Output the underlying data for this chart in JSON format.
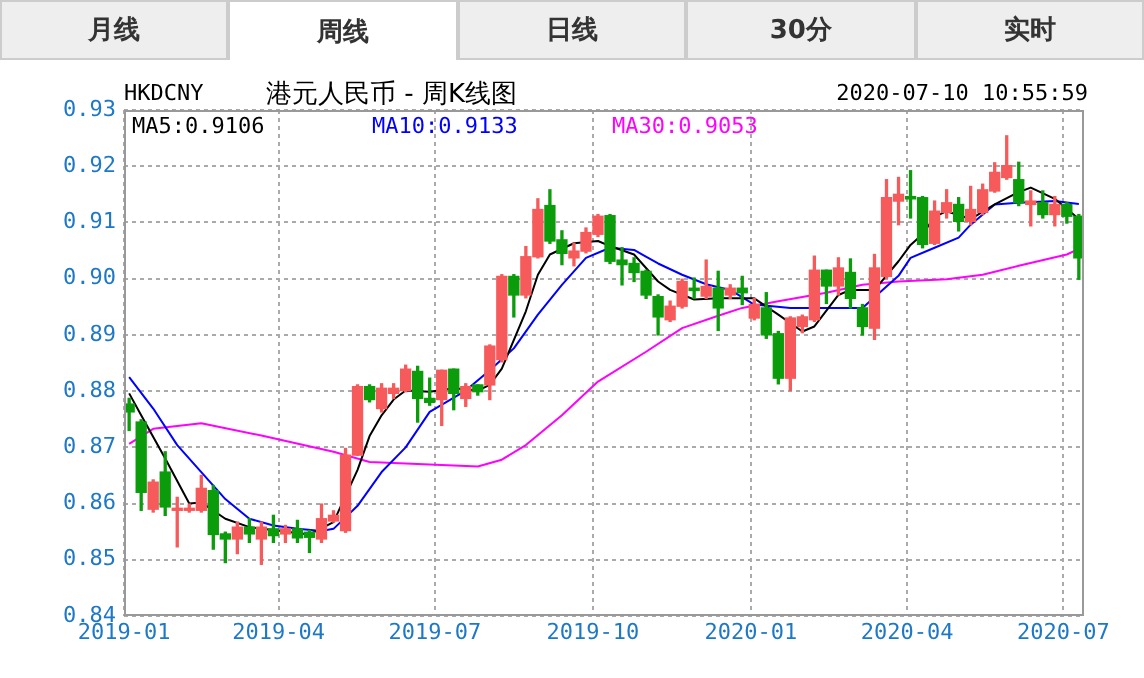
{
  "chart_data": {
    "type": "candlestick",
    "title": "港元人民币 - 周K线图",
    "subtitle": "HKDCNY",
    "annotations": [
      "月线",
      "周线",
      "日线",
      "30分",
      "实时",
      "2020-07-10 10:55:59"
    ],
    "x": [
      "2019-01-04",
      "2019-01-11",
      "2019-01-18",
      "2019-01-25",
      "2019-02-01",
      "2019-02-08",
      "2019-02-15",
      "2019-02-22",
      "2019-03-01",
      "2019-03-08",
      "2019-03-15",
      "2019-03-22",
      "2019-03-29",
      "2019-04-05",
      "2019-04-12",
      "2019-04-19",
      "2019-04-26",
      "2019-05-03",
      "2019-05-10",
      "2019-05-17",
      "2019-05-24",
      "2019-05-31",
      "2019-06-07",
      "2019-06-14",
      "2019-06-21",
      "2019-06-28",
      "2019-07-05",
      "2019-07-12",
      "2019-07-19",
      "2019-07-26",
      "2019-08-02",
      "2019-08-09",
      "2019-08-16",
      "2019-08-23",
      "2019-08-30",
      "2019-09-06",
      "2019-09-13",
      "2019-09-20",
      "2019-09-27",
      "2019-10-04",
      "2019-10-11",
      "2019-10-18",
      "2019-10-25",
      "2019-11-01",
      "2019-11-08",
      "2019-11-15",
      "2019-11-22",
      "2019-11-29",
      "2019-12-06",
      "2019-12-13",
      "2019-12-20",
      "2019-12-27",
      "2020-01-03",
      "2020-01-10",
      "2020-01-17",
      "2020-01-24",
      "2020-01-31",
      "2020-02-07",
      "2020-02-14",
      "2020-02-21",
      "2020-02-28",
      "2020-03-06",
      "2020-03-13",
      "2020-03-20",
      "2020-03-27",
      "2020-04-03",
      "2020-04-10",
      "2020-04-17",
      "2020-04-24",
      "2020-05-01",
      "2020-05-08",
      "2020-05-15",
      "2020-05-22",
      "2020-05-29",
      "2020-06-05",
      "2020-06-12",
      "2020-06-19",
      "2020-06-26",
      "2020-07-03",
      "2020-07-10"
    ],
    "ohlc": [
      [
        0.8777,
        0.8787,
        0.873,
        0.8763
      ],
      [
        0.8745,
        0.8749,
        0.8588,
        0.862
      ],
      [
        0.859,
        0.8642,
        0.8585,
        0.8638
      ],
      [
        0.8656,
        0.8692,
        0.8579,
        0.8594
      ],
      [
        0.8588,
        0.8611,
        0.8523,
        0.859
      ],
      [
        0.8588,
        0.8599,
        0.8585,
        0.8591
      ],
      [
        0.8588,
        0.865,
        0.8585,
        0.8627
      ],
      [
        0.8623,
        0.8632,
        0.8519,
        0.8545
      ],
      [
        0.8546,
        0.8549,
        0.8495,
        0.8537
      ],
      [
        0.8537,
        0.8567,
        0.8511,
        0.8558
      ],
      [
        0.8558,
        0.8573,
        0.8531,
        0.8546
      ],
      [
        0.8537,
        0.8567,
        0.8492,
        0.8558
      ],
      [
        0.8555,
        0.8579,
        0.8531,
        0.8543
      ],
      [
        0.8546,
        0.8561,
        0.8531,
        0.8555
      ],
      [
        0.8555,
        0.857,
        0.8531,
        0.8539
      ],
      [
        0.8549,
        0.8552,
        0.8513,
        0.854
      ],
      [
        0.8537,
        0.8599,
        0.8531,
        0.8573
      ],
      [
        0.8569,
        0.8587,
        0.8567,
        0.8579
      ],
      [
        0.8552,
        0.8698,
        0.8549,
        0.8686
      ],
      [
        0.8686,
        0.8811,
        0.8686,
        0.8808
      ],
      [
        0.8808,
        0.8811,
        0.8781,
        0.8785
      ],
      [
        0.8769,
        0.8813,
        0.8763,
        0.8805
      ],
      [
        0.8796,
        0.8813,
        0.8787,
        0.8805
      ],
      [
        0.8801,
        0.8846,
        0.8799,
        0.8839
      ],
      [
        0.8835,
        0.8844,
        0.8745,
        0.8787
      ],
      [
        0.8787,
        0.8823,
        0.8775,
        0.878
      ],
      [
        0.8785,
        0.8837,
        0.8739,
        0.8837
      ],
      [
        0.8839,
        0.8839,
        0.8767,
        0.8796
      ],
      [
        0.8787,
        0.8813,
        0.8773,
        0.8808
      ],
      [
        0.8811,
        0.8811,
        0.8793,
        0.8799
      ],
      [
        0.8811,
        0.8882,
        0.8785,
        0.888
      ],
      [
        0.8856,
        0.9007,
        0.8852,
        0.9004
      ],
      [
        0.9004,
        0.9007,
        0.8932,
        0.8971
      ],
      [
        0.8971,
        0.9057,
        0.8966,
        0.9039
      ],
      [
        0.9039,
        0.9142,
        0.9037,
        0.9123
      ],
      [
        0.913,
        0.9158,
        0.9063,
        0.9067
      ],
      [
        0.9069,
        0.9085,
        0.9025,
        0.9045
      ],
      [
        0.9037,
        0.9063,
        0.9023,
        0.9049
      ],
      [
        0.9049,
        0.909,
        0.9046,
        0.9082
      ],
      [
        0.9079,
        0.9114,
        0.9075,
        0.9111
      ],
      [
        0.9112,
        0.9114,
        0.9027,
        0.9031
      ],
      [
        0.9033,
        0.9055,
        0.8989,
        0.9025
      ],
      [
        0.9027,
        0.9037,
        0.8995,
        0.9011
      ],
      [
        0.9013,
        0.9015,
        0.8965,
        0.8971
      ],
      [
        0.8968,
        0.8971,
        0.89,
        0.8932
      ],
      [
        0.8927,
        0.896,
        0.8924,
        0.8951
      ],
      [
        0.8951,
        0.8999,
        0.8948,
        0.8995
      ],
      [
        0.8983,
        0.9001,
        0.8965,
        0.8979
      ],
      [
        0.8969,
        0.9033,
        0.8965,
        0.8986
      ],
      [
        0.8983,
        0.9013,
        0.8908,
        0.8948
      ],
      [
        0.8971,
        0.8989,
        0.8965,
        0.8983
      ],
      [
        0.8983,
        0.9004,
        0.8954,
        0.8975
      ],
      [
        0.893,
        0.8965,
        0.8927,
        0.8954
      ],
      [
        0.8948,
        0.8975,
        0.8894,
        0.89
      ],
      [
        0.8902,
        0.8906,
        0.8813,
        0.8823
      ],
      [
        0.8823,
        0.8932,
        0.8801,
        0.893
      ],
      [
        0.8915,
        0.8935,
        0.8904,
        0.8932
      ],
      [
        0.8927,
        0.904,
        0.8924,
        0.9015
      ],
      [
        0.9015,
        0.9015,
        0.8956,
        0.8987
      ],
      [
        0.8987,
        0.9037,
        0.8971,
        0.9019
      ],
      [
        0.9011,
        0.9035,
        0.8948,
        0.8965
      ],
      [
        0.8948,
        0.8954,
        0.89,
        0.8915
      ],
      [
        0.8912,
        0.9043,
        0.8892,
        0.9019
      ],
      [
        0.9004,
        0.9176,
        0.9001,
        0.9144
      ],
      [
        0.9138,
        0.918,
        0.9096,
        0.915
      ],
      [
        0.9146,
        0.9192,
        0.9108,
        0.9142
      ],
      [
        0.9144,
        0.9146,
        0.9055,
        0.9061
      ],
      [
        0.9063,
        0.9138,
        0.9061,
        0.912
      ],
      [
        0.9118,
        0.9158,
        0.9108,
        0.9135
      ],
      [
        0.9132,
        0.9144,
        0.9085,
        0.9102
      ],
      [
        0.9102,
        0.9164,
        0.9096,
        0.9123
      ],
      [
        0.9118,
        0.9168,
        0.9114,
        0.9158
      ],
      [
        0.9156,
        0.9206,
        0.9154,
        0.9189
      ],
      [
        0.918,
        0.9254,
        0.9177,
        0.9201
      ],
      [
        0.9176,
        0.9207,
        0.913,
        0.9135
      ],
      [
        0.9132,
        0.9156,
        0.9094,
        0.9138
      ],
      [
        0.9135,
        0.9156,
        0.9108,
        0.9114
      ],
      [
        0.9114,
        0.9146,
        0.9094,
        0.9132
      ],
      [
        0.9132,
        0.9135,
        0.9099,
        0.9111
      ],
      [
        0.9111,
        0.9114,
        0.8999,
        0.9037
      ]
    ],
    "colors": [
      "#0b9c0b",
      "#0b9c0b",
      "#f65a5a",
      "#0b9c0b",
      "#f65a5a",
      "#f65a5a",
      "#f65a5a",
      "#0b9c0b",
      "#0b9c0b",
      "#f65a5a",
      "#0b9c0b",
      "#f65a5a",
      "#0b9c0b",
      "#f65a5a",
      "#0b9c0b",
      "#0b9c0b",
      "#f65a5a",
      "#f65a5a",
      "#f65a5a",
      "#f65a5a",
      "#0b9c0b",
      "#f65a5a",
      "#f65a5a",
      "#f65a5a",
      "#0b9c0b",
      "#0b9c0b",
      "#f65a5a",
      "#0b9c0b",
      "#f65a5a",
      "#0b9c0b",
      "#f65a5a",
      "#f65a5a",
      "#0b9c0b",
      "#f65a5a",
      "#f65a5a",
      "#0b9c0b",
      "#0b9c0b",
      "#f65a5a",
      "#f65a5a",
      "#f65a5a",
      "#0b9c0b",
      "#0b9c0b",
      "#0b9c0b",
      "#0b9c0b",
      "#0b9c0b",
      "#f65a5a",
      "#f65a5a",
      "#0b9c0b",
      "#f65a5a",
      "#0b9c0b",
      "#f65a5a",
      "#0b9c0b",
      "#f65a5a",
      "#0b9c0b",
      "#0b9c0b",
      "#f65a5a",
      "#f65a5a",
      "#f65a5a",
      "#0b9c0b",
      "#f65a5a",
      "#0b9c0b",
      "#0b9c0b",
      "#f65a5a",
      "#f65a5a",
      "#f65a5a",
      "#0b9c0b",
      "#0b9c0b",
      "#f65a5a",
      "#f65a5a",
      "#0b9c0b",
      "#f65a5a",
      "#f65a5a",
      "#f65a5a",
      "#f65a5a",
      "#0b9c0b",
      "#f65a5a",
      "#0b9c0b",
      "#f65a5a",
      "#0b9c0b",
      "#0b9c0b"
    ],
    "series": [
      {
        "name": "MA5:0.9106",
        "type": "line",
        "color": "#000000",
        "x": [
          "2019-01-04",
          "2019-01-11",
          "2019-01-25",
          "2019-02-08",
          "2019-02-15",
          "2019-03-01",
          "2019-03-15",
          "2019-04-19",
          "2019-05-03",
          "2019-05-17",
          "2019-05-24",
          "2019-05-31",
          "2019-06-07",
          "2019-06-14",
          "2019-06-28",
          "2019-07-12",
          "2019-07-26",
          "2019-08-02",
          "2019-08-09",
          "2019-08-23",
          "2019-08-30",
          "2019-09-06",
          "2019-09-20",
          "2019-10-04",
          "2019-10-11",
          "2019-10-25",
          "2019-11-08",
          "2019-11-15",
          "2019-11-29",
          "2019-12-13",
          "2020-01-03",
          "2020-01-17",
          "2020-01-31",
          "2020-02-07",
          "2020-02-21",
          "2020-02-28",
          "2020-03-13",
          "2020-03-27",
          "2020-04-03",
          "2020-04-10",
          "2020-04-17",
          "2020-04-24",
          "2020-05-08",
          "2020-05-22",
          "2020-06-05",
          "2020-06-12",
          "2020-06-26",
          "2020-07-10"
        ],
        "values": [
          0.8796,
          0.8757,
          0.868,
          0.86,
          0.8602,
          0.8573,
          0.8558,
          0.8545,
          0.8567,
          0.866,
          0.872,
          0.8757,
          0.8785,
          0.8801,
          0.8799,
          0.8805,
          0.8801,
          0.8811,
          0.884,
          0.8942,
          0.9007,
          0.9043,
          0.9063,
          0.9067,
          0.9058,
          0.9043,
          0.8995,
          0.898,
          0.8963,
          0.8965,
          0.8965,
          0.8936,
          0.8906,
          0.8915,
          0.8971,
          0.898,
          0.898,
          0.9031,
          0.906,
          0.9079,
          0.911,
          0.912,
          0.9106,
          0.9132,
          0.9154,
          0.9162,
          0.9142,
          0.9106
        ]
      },
      {
        "name": "MA10:0.9133",
        "type": "line",
        "color": "#0000ff",
        "x": [
          "2019-01-04",
          "2019-01-18",
          "2019-02-01",
          "2019-02-15",
          "2019-03-01",
          "2019-03-15",
          "2019-03-29",
          "2019-04-12",
          "2019-04-26",
          "2019-05-03",
          "2019-05-17",
          "2019-05-31",
          "2019-06-14",
          "2019-06-28",
          "2019-07-19",
          "2019-08-02",
          "2019-08-16",
          "2019-08-30",
          "2019-09-13",
          "2019-09-27",
          "2019-10-11",
          "2019-10-25",
          "2019-11-08",
          "2019-11-22",
          "2019-12-06",
          "2019-12-20",
          "2020-01-03",
          "2020-01-24",
          "2020-02-14",
          "2020-03-06",
          "2020-03-27",
          "2020-04-03",
          "2020-04-17",
          "2020-05-01",
          "2020-05-08",
          "2020-05-22",
          "2020-06-05",
          "2020-06-26",
          "2020-07-10"
        ],
        "values": [
          0.8825,
          0.8769,
          0.8704,
          0.8656,
          0.8608,
          0.8573,
          0.8561,
          0.8555,
          0.8551,
          0.8555,
          0.8596,
          0.8656,
          0.87,
          0.8763,
          0.8801,
          0.8837,
          0.8876,
          0.8936,
          0.8989,
          0.9037,
          0.9055,
          0.9051,
          0.9027,
          0.9007,
          0.899,
          0.898,
          0.8954,
          0.8948,
          0.8948,
          0.8948,
          0.9005,
          0.9037,
          0.9055,
          0.9073,
          0.9096,
          0.9132,
          0.9135,
          0.9138,
          0.9133
        ]
      },
      {
        "name": "MA30:0.9053",
        "type": "line",
        "color": "#ff00ff",
        "x": [
          "2019-01-04",
          "2019-01-18",
          "2019-02-15",
          "2019-03-22",
          "2019-05-03",
          "2019-05-24",
          "2019-07-26",
          "2019-08-09",
          "2019-08-23",
          "2019-09-13",
          "2019-10-04",
          "2019-11-01",
          "2019-11-22",
          "2019-12-13",
          "2019-12-27",
          "2020-01-17",
          "2020-02-14",
          "2020-03-06",
          "2020-03-27",
          "2020-04-24",
          "2020-05-15",
          "2020-06-05",
          "2020-07-03",
          "2020-07-10"
        ],
        "values": [
          0.8706,
          0.8733,
          0.8743,
          0.8721,
          0.8692,
          0.8674,
          0.8666,
          0.8678,
          0.8704,
          0.8757,
          0.8817,
          0.887,
          0.8912,
          0.8934,
          0.8948,
          0.896,
          0.8975,
          0.8989,
          0.8995,
          0.8999,
          0.9007,
          0.9023,
          0.9043,
          0.9053
        ]
      }
    ],
    "xlim": [
      "2019-01-01",
      "2020-07-13"
    ],
    "xticks": [
      "2019-01",
      "2019-04",
      "2019-07",
      "2019-10",
      "2020-01",
      "2020-04",
      "2020-07"
    ],
    "ylim": [
      0.84,
      0.93
    ],
    "yticks": [
      0.84,
      0.85,
      0.86,
      0.87,
      0.88,
      0.89,
      {
        "value": 0.9,
        "label": "0.90"
      },
      0.91,
      0.92,
      0.93
    ],
    "grid": true,
    "legend": "top left"
  }
}
